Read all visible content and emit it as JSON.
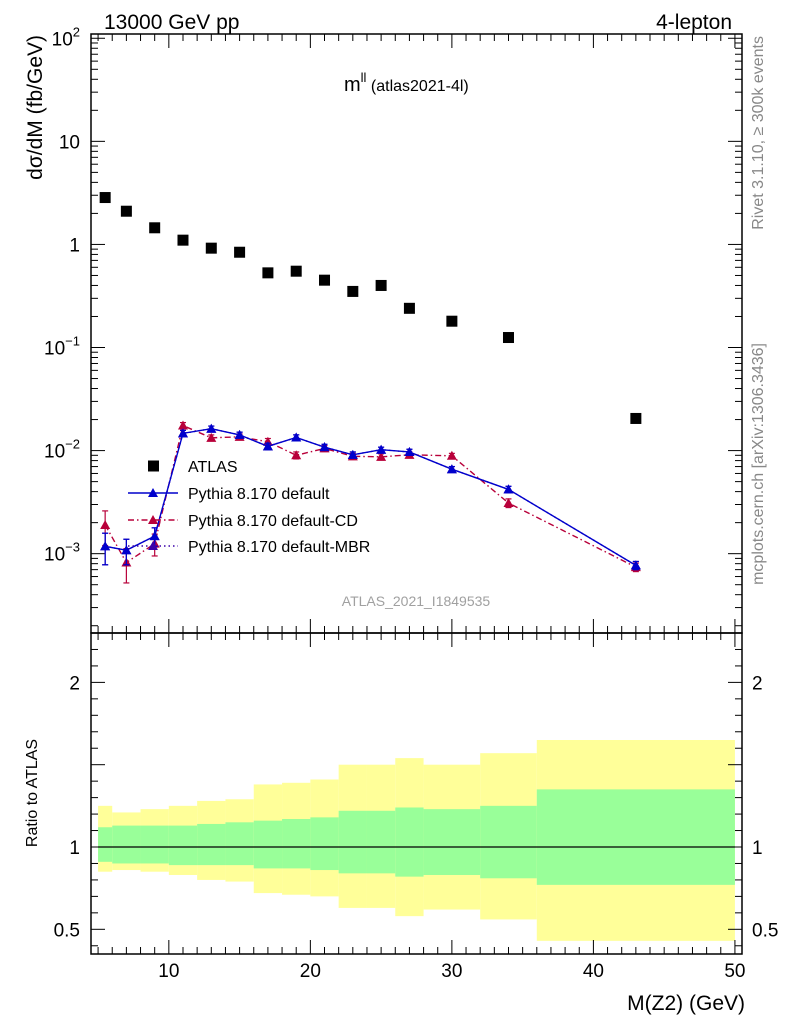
{
  "header": {
    "left": "13000 GeV pp",
    "right": "4-lepton"
  },
  "side_text": {
    "top": "Rivet 3.1.10, ≥ 300k events",
    "bottom": "mcplots.cern.ch [arXiv:1306.3436]"
  },
  "chart_data": [
    {
      "type": "scatter",
      "title_main": "m",
      "title_sup": "ll",
      "title_tail": " (atlas2021-4l)",
      "ylabel": "dσ/dM (fb/GeV)",
      "yscale": "log",
      "ylim": [
        0.00017,
        110
      ],
      "xlim": [
        4.5,
        50.5
      ],
      "ytick_labels": [
        {
          "base": "10",
          "exp": "2"
        },
        {
          "base": "10",
          "exp": ""
        },
        {
          "base": "1",
          "exp": ""
        },
        {
          "base": "10",
          "exp": "−1"
        },
        {
          "base": "10",
          "exp": "−2"
        },
        {
          "base": "10",
          "exp": "−3"
        }
      ],
      "ytick_values": [
        100,
        10,
        1,
        0.1,
        0.01,
        0.001
      ],
      "watermark": "ATLAS_2021_I1849535",
      "legend_position": "lower-left",
      "series": [
        {
          "name": "ATLAS",
          "color": "#000000",
          "marker": "square",
          "x": [
            5.5,
            7,
            9,
            11,
            13,
            15,
            17,
            19,
            21,
            23,
            25,
            27,
            30,
            34,
            43
          ],
          "y": [
            2.85,
            2.1,
            1.45,
            1.1,
            0.92,
            0.84,
            0.53,
            0.55,
            0.45,
            0.35,
            0.4,
            0.24,
            0.18,
            0.125,
            0.0205
          ]
        },
        {
          "name": "Pythia 8.170 default",
          "color": "#0000cc",
          "marker": "triangle",
          "line": "solid",
          "x": [
            5.5,
            7,
            9,
            11,
            13,
            15,
            17,
            19,
            21,
            23,
            25,
            27,
            30,
            34,
            43
          ],
          "y": [
            0.00118,
            0.00108,
            0.00148,
            0.0147,
            0.0163,
            0.0142,
            0.011,
            0.0134,
            0.0108,
            0.0091,
            0.0102,
            0.0097,
            0.0066,
            0.0042,
            0.00077
          ],
          "err": [
            0.0004,
            0.0003,
            0.0003,
            0.001,
            0.001,
            0.0009,
            0.0008,
            0.0008,
            0.0007,
            0.0006,
            0.0006,
            0.0006,
            0.0004,
            0.0003,
            7e-05
          ]
        },
        {
          "name": "Pythia 8.170 default-CD",
          "color": "#b8003a",
          "marker": "triangle",
          "line": "dashdot",
          "x": [
            5.5,
            7,
            9,
            11,
            13,
            15,
            17,
            19,
            21,
            23,
            25,
            27,
            30,
            34,
            43
          ],
          "y": [
            0.0019,
            0.00082,
            0.00125,
            0.0175,
            0.0133,
            0.0136,
            0.0122,
            0.009,
            0.0105,
            0.0088,
            0.0087,
            0.0091,
            0.0089,
            0.0031,
            0.00074
          ],
          "err": [
            0.0007,
            0.0003,
            0.0003,
            0.0012,
            0.0009,
            0.0009,
            0.0009,
            0.0007,
            0.0007,
            0.0006,
            0.0006,
            0.0006,
            0.0005,
            0.0003,
            7e-05
          ]
        },
        {
          "name": "Pythia 8.170 default-MBR",
          "color": "#3a00aa",
          "marker": "triangle",
          "line": "dotted",
          "x": [
            5.5,
            7,
            9,
            11,
            13,
            15,
            17,
            19,
            21,
            23,
            25,
            27,
            30,
            34,
            43
          ],
          "y": [
            0.00118,
            0.00108,
            0.00148,
            0.0147,
            0.0163,
            0.0142,
            0.011,
            0.0134,
            0.0108,
            0.0091,
            0.0102,
            0.0097,
            0.0066,
            0.0042,
            0.00077
          ],
          "err": [
            0.0004,
            0.0003,
            0.0003,
            0.001,
            0.001,
            0.0009,
            0.0008,
            0.0008,
            0.0007,
            0.0006,
            0.0006,
            0.0006,
            0.0004,
            0.0003,
            7e-05
          ]
        }
      ]
    },
    {
      "type": "area",
      "ylabel": "Ratio to ATLAS",
      "xlabel": "M(Z2) (GeV)",
      "xlim": [
        4.5,
        50.5
      ],
      "ylim": [
        0.35,
        2.3
      ],
      "xticks": [
        10,
        20,
        30,
        40,
        50
      ],
      "yticks": [
        2,
        1,
        0.5
      ],
      "reference_line": 1,
      "band_colors": {
        "inner": "#99ff99",
        "outer": "#ffff99"
      },
      "bins": [
        {
          "lo": 5,
          "hi": 6,
          "inner": [
            0.91,
            1.12
          ],
          "outer": [
            0.85,
            1.25
          ]
        },
        {
          "lo": 6,
          "hi": 8,
          "inner": [
            0.9,
            1.13
          ],
          "outer": [
            0.86,
            1.21
          ]
        },
        {
          "lo": 8,
          "hi": 10,
          "inner": [
            0.9,
            1.13
          ],
          "outer": [
            0.85,
            1.23
          ]
        },
        {
          "lo": 10,
          "hi": 12,
          "inner": [
            0.89,
            1.13
          ],
          "outer": [
            0.83,
            1.25
          ]
        },
        {
          "lo": 12,
          "hi": 14,
          "inner": [
            0.89,
            1.14
          ],
          "outer": [
            0.8,
            1.28
          ]
        },
        {
          "lo": 14,
          "hi": 16,
          "inner": [
            0.89,
            1.15
          ],
          "outer": [
            0.79,
            1.29
          ]
        },
        {
          "lo": 16,
          "hi": 18,
          "inner": [
            0.87,
            1.16
          ],
          "outer": [
            0.72,
            1.38
          ]
        },
        {
          "lo": 18,
          "hi": 20,
          "inner": [
            0.87,
            1.17
          ],
          "outer": [
            0.71,
            1.39
          ]
        },
        {
          "lo": 20,
          "hi": 22,
          "inner": [
            0.86,
            1.18
          ],
          "outer": [
            0.7,
            1.41
          ]
        },
        {
          "lo": 22,
          "hi": 24,
          "inner": [
            0.84,
            1.22
          ],
          "outer": [
            0.63,
            1.5
          ]
        },
        {
          "lo": 24,
          "hi": 26,
          "inner": [
            0.84,
            1.22
          ],
          "outer": [
            0.63,
            1.5
          ]
        },
        {
          "lo": 26,
          "hi": 28,
          "inner": [
            0.82,
            1.24
          ],
          "outer": [
            0.58,
            1.54
          ]
        },
        {
          "lo": 28,
          "hi": 32,
          "inner": [
            0.83,
            1.23
          ],
          "outer": [
            0.62,
            1.5
          ]
        },
        {
          "lo": 32,
          "hi": 36,
          "inner": [
            0.81,
            1.25
          ],
          "outer": [
            0.56,
            1.57
          ]
        },
        {
          "lo": 36,
          "hi": 50,
          "inner": [
            0.77,
            1.35
          ],
          "outer": [
            0.43,
            1.65
          ]
        }
      ]
    }
  ]
}
